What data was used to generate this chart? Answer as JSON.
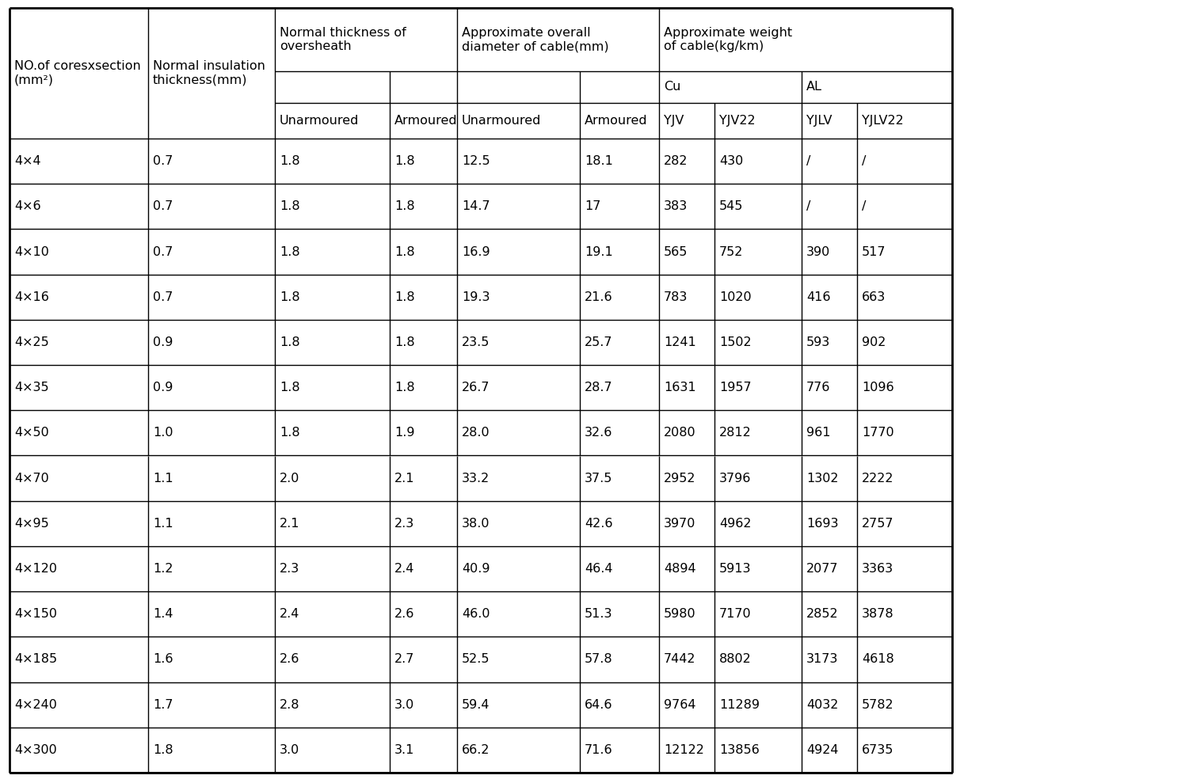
{
  "figsize": [
    14.96,
    9.84
  ],
  "dpi": 100,
  "background_color": "#ffffff",
  "rows": [
    [
      "4×4",
      "0.7",
      "1.8",
      "1.8",
      "12.5",
      "18.1",
      "282",
      "430",
      "/",
      "/"
    ],
    [
      "4×6",
      "0.7",
      "1.8",
      "1.8",
      "14.7",
      "17",
      "383",
      "545",
      "/",
      "/"
    ],
    [
      "4×10",
      "0.7",
      "1.8",
      "1.8",
      "16.9",
      "19.1",
      "565",
      "752",
      "390",
      "517"
    ],
    [
      "4×16",
      "0.7",
      "1.8",
      "1.8",
      "19.3",
      "21.6",
      "783",
      "1020",
      "416",
      "663"
    ],
    [
      "4×25",
      "0.9",
      "1.8",
      "1.8",
      "23.5",
      "25.7",
      "1241",
      "1502",
      "593",
      "902"
    ],
    [
      "4×35",
      "0.9",
      "1.8",
      "1.8",
      "26.7",
      "28.7",
      "1631",
      "1957",
      "776",
      "1096"
    ],
    [
      "4×50",
      "1.0",
      "1.8",
      "1.9",
      "28.0",
      "32.6",
      "2080",
      "2812",
      "961",
      "1770"
    ],
    [
      "4×70",
      "1.1",
      "2.0",
      "2.1",
      "33.2",
      "37.5",
      "2952",
      "3796",
      "1302",
      "2222"
    ],
    [
      "4×95",
      "1.1",
      "2.1",
      "2.3",
      "38.0",
      "42.6",
      "3970",
      "4962",
      "1693",
      "2757"
    ],
    [
      "4×120",
      "1.2",
      "2.3",
      "2.4",
      "40.9",
      "46.4",
      "4894",
      "5913",
      "2077",
      "3363"
    ],
    [
      "4×150",
      "1.4",
      "2.4",
      "2.6",
      "46.0",
      "51.3",
      "5980",
      "7170",
      "2852",
      "3878"
    ],
    [
      "4×185",
      "1.6",
      "2.6",
      "2.7",
      "52.5",
      "57.8",
      "7442",
      "8802",
      "3173",
      "4618"
    ],
    [
      "4×240",
      "1.7",
      "2.8",
      "3.0",
      "59.4",
      "64.6",
      "9764",
      "11289",
      "4032",
      "5782"
    ],
    [
      "4×300",
      "1.8",
      "3.0",
      "3.1",
      "66.2",
      "71.6",
      "12122",
      "13856",
      "4924",
      "6735"
    ]
  ],
  "line_color": "#000000",
  "text_color": "#000000",
  "font_size": 11.5
}
